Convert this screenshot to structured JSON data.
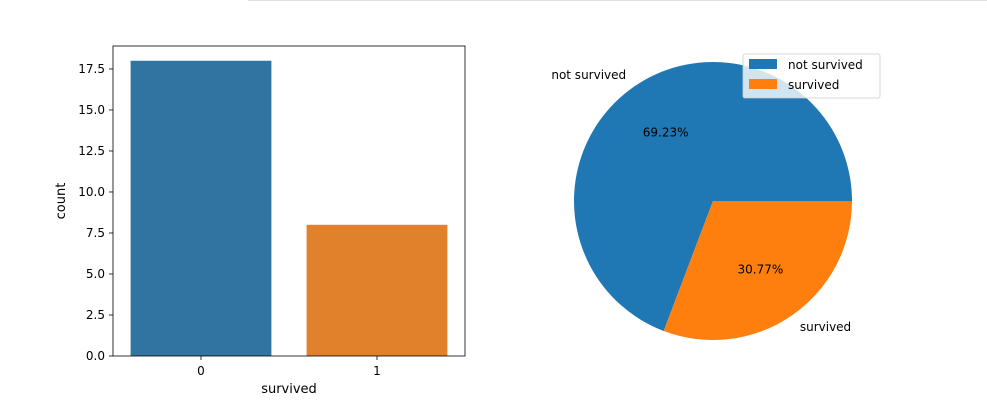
{
  "chart_data": [
    {
      "type": "bar",
      "categories": [
        "0",
        "1"
      ],
      "values": [
        18,
        8
      ],
      "colors": [
        "#3274a1",
        "#e1812c"
      ],
      "xlabel": "survived",
      "ylabel": "count",
      "ylim": [
        0,
        18.9
      ],
      "yticks": [
        "0.0",
        "2.5",
        "5.0",
        "7.5",
        "10.0",
        "12.5",
        "15.0",
        "17.5"
      ],
      "grid": false
    },
    {
      "type": "pie",
      "labels": [
        "not survived",
        "survived"
      ],
      "values": [
        69.23,
        30.77
      ],
      "pct_labels": [
        "69.23%",
        "30.77%"
      ],
      "colors": [
        "#1f77b4",
        "#ff7f0e"
      ],
      "legend": {
        "placement": "top-right",
        "entries": [
          "not survived",
          "survived"
        ]
      }
    }
  ]
}
